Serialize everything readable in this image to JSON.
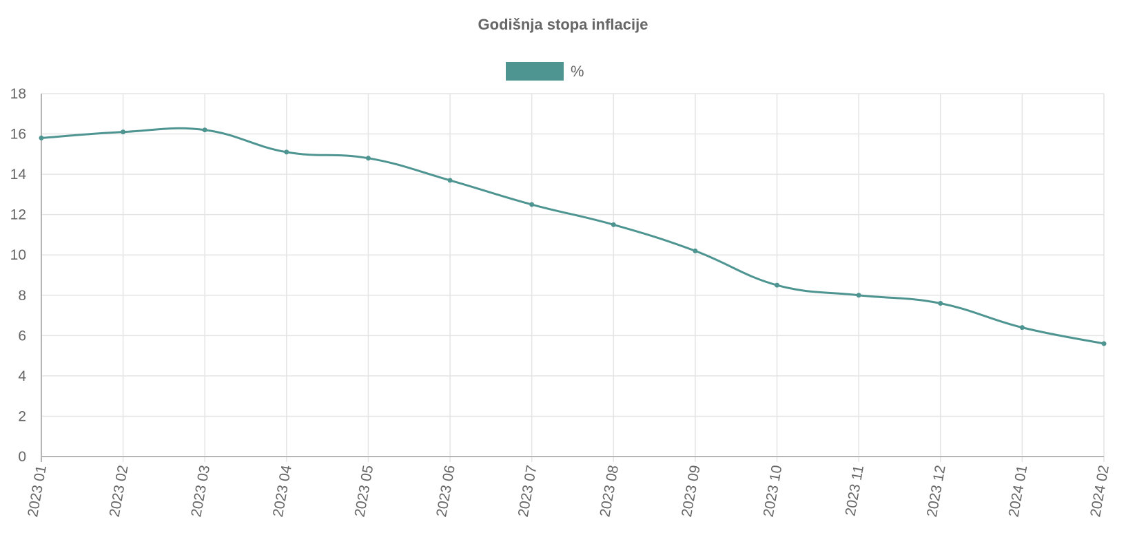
{
  "chart_data": {
    "type": "line",
    "title": "Godišnja stopa inflacije",
    "categories": [
      "2023 01",
      "2023 02",
      "2023 03",
      "2023 04",
      "2023 05",
      "2023 06",
      "2023 07",
      "2023 08",
      "2023 09",
      "2023 10",
      "2023 11",
      "2023 12",
      "2024 01",
      "2024 02"
    ],
    "series": [
      {
        "name": "%",
        "values": [
          15.8,
          16.1,
          16.2,
          15.1,
          14.8,
          13.7,
          12.5,
          11.5,
          10.2,
          8.5,
          8.0,
          7.6,
          6.4,
          5.6
        ]
      }
    ],
    "ylim": [
      0,
      18
    ],
    "yticks": [
      0,
      2,
      4,
      6,
      8,
      10,
      12,
      14,
      16,
      18
    ],
    "grid": true,
    "legend_position": "top-center",
    "colors": {
      "line": "#4e9592",
      "legend_swatch": "#4e9592",
      "text": "#666666",
      "grid": "#e4e4e4"
    }
  }
}
